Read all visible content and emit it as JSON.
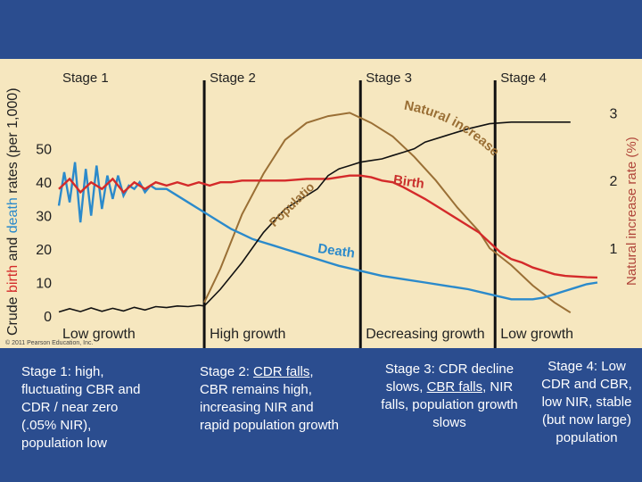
{
  "chart_data": {
    "type": "line",
    "title": "",
    "stages": [
      "Stage 1",
      "Stage 2",
      "Stage 3",
      "Stage 4"
    ],
    "growth_labels": [
      "Low growth",
      "High growth",
      "Decreasing growth",
      "Low growth"
    ],
    "ylabel_left": {
      "prefix": "Crude ",
      "birth": "birth",
      "and": " and ",
      "death": "death",
      "suffix": " rates (per 1,000)"
    },
    "ylabel_right": "Natural increase rate (%)",
    "y_left_ticks": [
      "0",
      "10",
      "20",
      "30",
      "40",
      "50"
    ],
    "y_left_range": [
      0,
      55
    ],
    "y_right_ticks": [
      "1",
      "2",
      "3"
    ],
    "y_right_range": [
      0,
      3.4
    ],
    "x_range": [
      0,
      100
    ],
    "copyright": "© 2011 Pearson Education, Inc.",
    "series": [
      {
        "name": "Birth",
        "color": "#d42a2a",
        "label": "Birth",
        "x": [
          0,
          2,
          4,
          6,
          8,
          10,
          12,
          14,
          16,
          18,
          20,
          22,
          24,
          26,
          28,
          30,
          32,
          34,
          38,
          42,
          46,
          50,
          54,
          56,
          58,
          60,
          62,
          64,
          68,
          72,
          76,
          78,
          80,
          82,
          84,
          86,
          88,
          90,
          92,
          94,
          96,
          98,
          100
        ],
        "y": [
          38,
          41,
          37,
          40,
          38,
          41,
          37,
          40,
          38,
          40,
          39,
          40,
          39,
          40,
          39,
          40,
          40,
          40.5,
          40.5,
          40.5,
          41,
          41,
          42,
          42,
          41.5,
          40.5,
          40,
          38.5,
          35,
          31,
          27,
          25,
          22,
          19,
          17,
          16,
          14.5,
          13.5,
          12.5,
          12,
          11.8,
          11.6,
          11.5
        ]
      },
      {
        "name": "Death",
        "color": "#2b8acb",
        "label": "Death",
        "x": [
          0,
          1,
          2,
          3,
          4,
          5,
          6,
          7,
          8,
          9,
          10,
          11,
          12,
          13,
          14,
          15,
          16,
          17,
          18,
          20,
          22,
          24,
          26,
          28,
          30,
          32,
          34,
          36,
          38,
          40,
          42,
          44,
          46,
          48,
          50,
          52,
          56,
          60,
          64,
          68,
          72,
          76,
          80,
          84,
          88,
          90,
          92,
          94,
          96,
          98,
          100
        ],
        "y": [
          33,
          43,
          34,
          46,
          28,
          44,
          30,
          45,
          32,
          42,
          35,
          42,
          36,
          39,
          38,
          40,
          37,
          39,
          38,
          38,
          36,
          34,
          32,
          30,
          28,
          26,
          24.5,
          23,
          22,
          21,
          20,
          19,
          18,
          17,
          16,
          15,
          13.5,
          12,
          11,
          10,
          9,
          8,
          6.5,
          5,
          5,
          5.5,
          6.5,
          7.5,
          8.5,
          9.5,
          10
        ]
      },
      {
        "name": "Natural increase",
        "color": "#9a6f35",
        "label": "Natural increase",
        "unit": "%",
        "x": [
          27,
          30,
          34,
          38,
          42,
          46,
          50,
          54,
          58,
          62,
          66,
          70,
          74,
          78,
          80,
          84,
          88,
          92,
          95
        ],
        "y": [
          0.2,
          0.7,
          1.5,
          2.1,
          2.6,
          2.85,
          2.95,
          3.0,
          2.85,
          2.65,
          2.35,
          2.0,
          1.6,
          1.25,
          1.0,
          0.75,
          0.45,
          0.2,
          0.05
        ]
      },
      {
        "name": "Population",
        "color": "#111111",
        "label": "Population",
        "unit": "relative",
        "x": [
          0,
          2,
          4,
          6,
          8,
          10,
          12,
          14,
          16,
          18,
          20,
          22,
          24,
          26,
          27,
          30,
          34,
          38,
          42,
          46,
          48,
          50,
          52,
          54,
          56,
          58,
          60,
          62,
          64,
          66,
          68,
          72,
          76,
          80,
          84,
          88,
          92,
          95
        ],
        "y": [
          1.2,
          2.2,
          1.3,
          2.4,
          1.4,
          2.3,
          1.5,
          2.6,
          1.8,
          2.8,
          2.5,
          3.0,
          2.8,
          3.2,
          3.0,
          8,
          16,
          25,
          32,
          36,
          38,
          42,
          44,
          45,
          46,
          46.5,
          47,
          48,
          49,
          50,
          52,
          54,
          56,
          57.5,
          58,
          58,
          58,
          58
        ]
      }
    ],
    "stage_boundaries_x": [
      27,
      56,
      81
    ],
    "curve_labels": {
      "population": "Population",
      "natural_increase": "Natural increase",
      "birth": "Birth",
      "death": "Death"
    }
  },
  "captions": [
    {
      "text": "Stage 1: high, fluctuating CBR and CDR / near zero (.05% NIR), population low"
    },
    {
      "pre": "Stage 2: ",
      "u1": "CDR falls",
      "post": ", CBR remains high, increasing NIR and rapid population growth"
    },
    {
      "pre": "Stage 3: CDR decline slows, ",
      "u1": "CBR falls",
      "post": ", NIR falls, population growth slows"
    },
    {
      "text": "Stage 4: Low CDR and CBR, low NIR, stable (but now large) population"
    }
  ],
  "colors": {
    "background": "#2b4d8f",
    "chart_bg": "#f6e7bf",
    "caption_text": "#ffffff"
  }
}
